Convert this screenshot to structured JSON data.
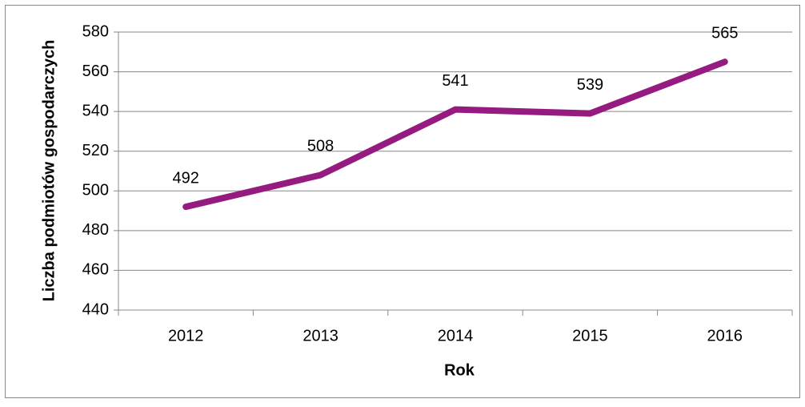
{
  "chart_data": {
    "type": "line",
    "x_label": "Rok",
    "y_label": "Liczba podmiotów gospodarczych",
    "categories": [
      "2012",
      "2013",
      "2014",
      "2015",
      "2016"
    ],
    "series": [
      {
        "name": "Liczba podmiotów gospodarczych",
        "color": "#951b81",
        "values": [
          492,
          508,
          541,
          539,
          565
        ]
      }
    ],
    "ylim": [
      440,
      580
    ],
    "yticks": [
      440,
      460,
      480,
      500,
      520,
      540,
      560,
      580
    ],
    "grid": true,
    "data_labels": true,
    "legend": false
  }
}
